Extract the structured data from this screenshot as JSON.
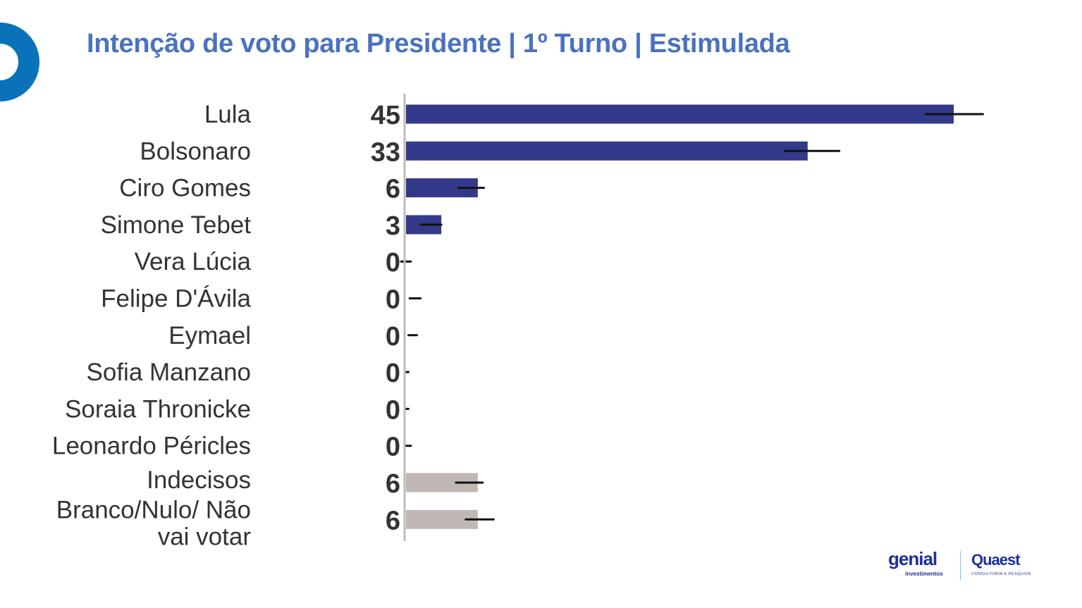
{
  "title": "Intenção de voto para Presidente | 1º Turno | Estimulada",
  "colors": {
    "title": "#4a72bf",
    "candidate_bar": "#343a8a",
    "other_bar": "#c0b8b5",
    "ring": "#0a72b8",
    "axis": "#bbbbbb",
    "error_bar": "#111111"
  },
  "logos": {
    "genial": "genial",
    "genial_sub": "investimentos",
    "quaest": "Quaest",
    "quaest_sub": "CONSULTORIA E PESQUISA"
  },
  "chart_data": {
    "type": "bar",
    "orientation": "horizontal",
    "title": "Intenção de voto para Presidente | 1º Turno | Estimulada",
    "xlim": [
      0,
      50
    ],
    "categories": [
      "Lula",
      "Bolsonaro",
      "Ciro Gomes",
      "Simone Tebet",
      "Vera Lúcia",
      "Felipe D'Ávila",
      "Eymael",
      "Sofia Manzano",
      "Soraia Thronicke",
      "Leonardo Péricles",
      "Indecisos",
      "Branco/Nulo/ Não vai votar"
    ],
    "label_lines": [
      [
        "Lula"
      ],
      [
        "Bolsonaro"
      ],
      [
        "Ciro Gomes"
      ],
      [
        "Simone Tebet"
      ],
      [
        "Vera Lúcia"
      ],
      [
        "Felipe D'Ávila"
      ],
      [
        "Eymael"
      ],
      [
        "Sofia Manzano"
      ],
      [
        "Soraia Thronicke"
      ],
      [
        "Leonardo Péricles"
      ],
      [
        "Indecisos"
      ],
      [
        "Branco/Nulo/ Não",
        "vai votar"
      ]
    ],
    "values": [
      45,
      33,
      6,
      3,
      0,
      0,
      0,
      0,
      0,
      0,
      6,
      6
    ],
    "bar_values": [
      45,
      33,
      5.9,
      2.9,
      0,
      0,
      0,
      0,
      0,
      0,
      5.9,
      5.9
    ],
    "error_low": [
      42.7,
      31.1,
      4.3,
      1.2,
      -0.4,
      0.3,
      0.2,
      0.0,
      0.0,
      0.0,
      4.1,
      4.9
    ],
    "error_high": [
      47.4,
      35.6,
      6.4,
      2.9,
      0.4,
      1.2,
      0.9,
      0.2,
      0.2,
      0.4,
      6.3,
      7.2
    ],
    "group": [
      "candidate",
      "candidate",
      "candidate",
      "candidate",
      "candidate",
      "candidate",
      "candidate",
      "candidate",
      "candidate",
      "candidate",
      "other",
      "other"
    ]
  }
}
